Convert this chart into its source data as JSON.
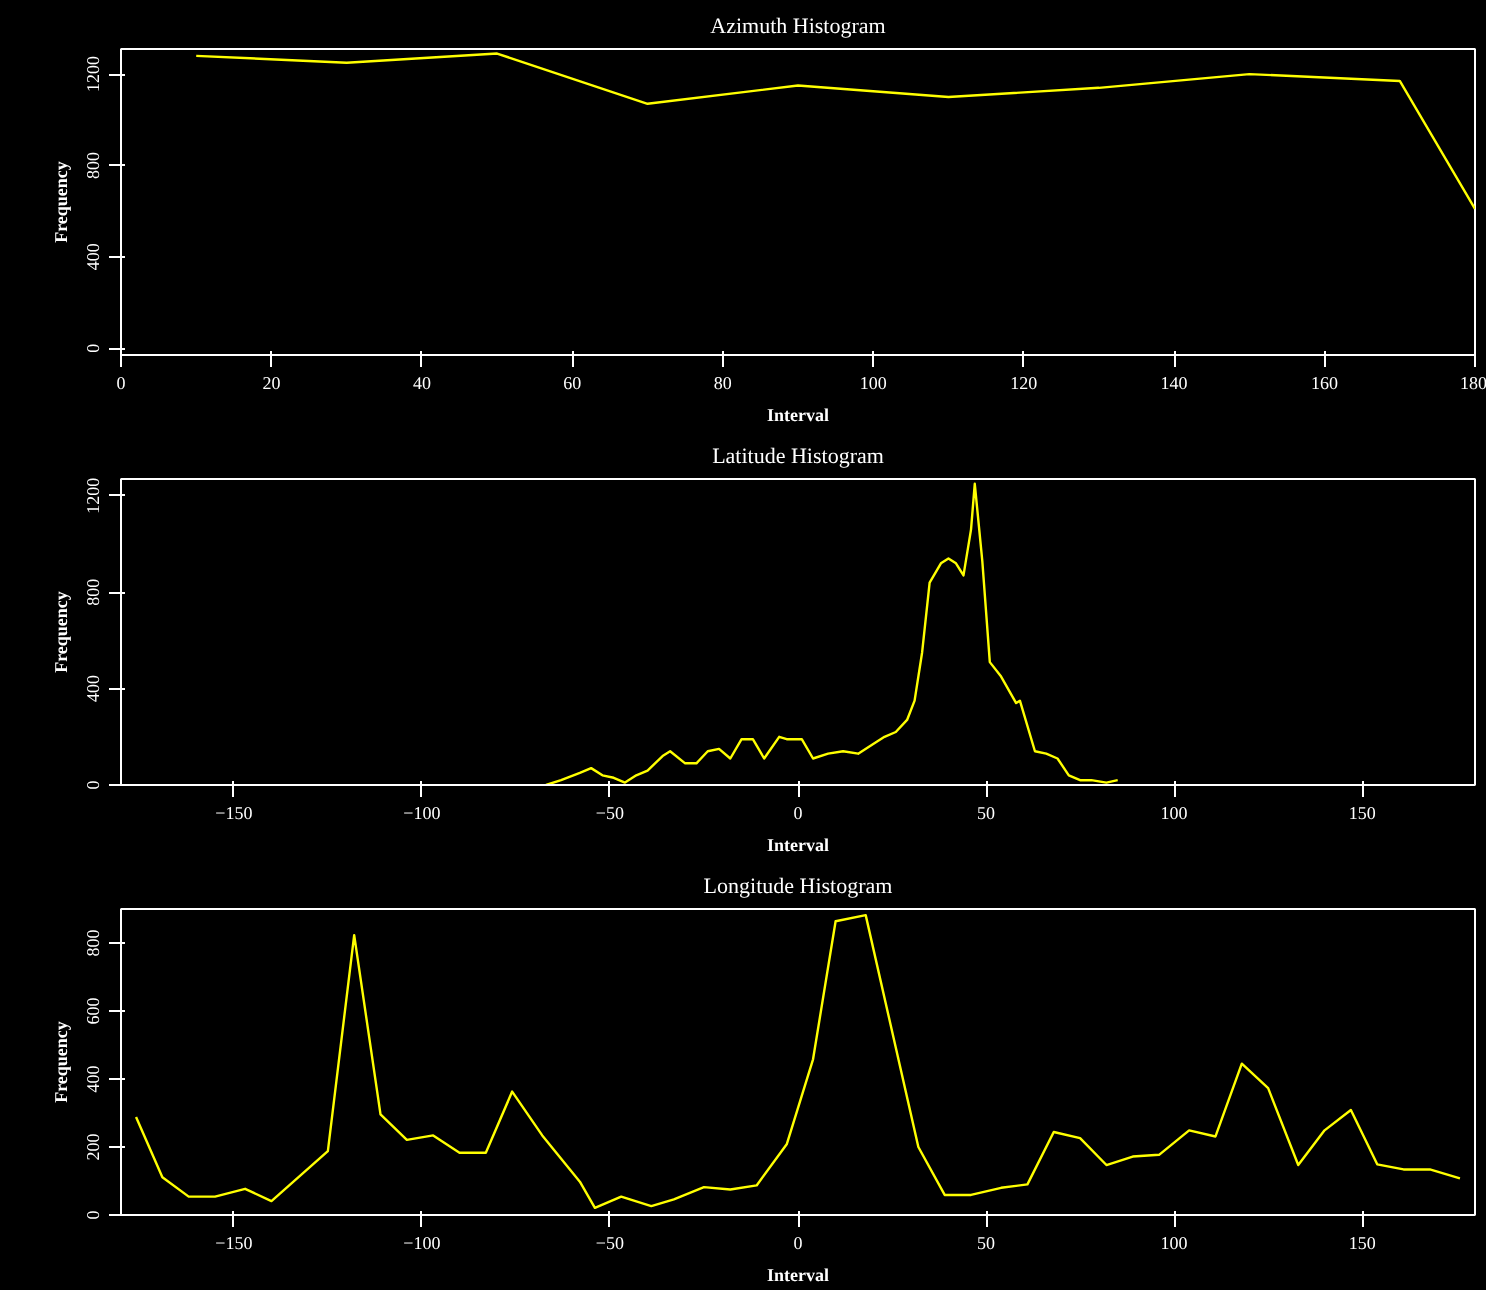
{
  "chart_data": [
    {
      "type": "line",
      "title": "Azimuth Histogram",
      "xlabel": "Interval",
      "ylabel": "Frequency",
      "xlim": [
        0,
        180
      ],
      "ylim": [
        -30,
        1310
      ],
      "xticks": [
        0,
        20,
        40,
        60,
        80,
        100,
        120,
        140,
        160,
        180
      ],
      "yticks": [
        0,
        400,
        800,
        1200
      ],
      "grid": false,
      "marker": "none",
      "line_style": "solid",
      "series": [
        {
          "color": "#ffff00",
          "x": [
            10,
            30,
            50,
            70,
            90,
            110,
            130,
            150,
            170,
            180
          ],
          "values": [
            1280,
            1250,
            1290,
            1070,
            1150,
            1100,
            1140,
            1200,
            1170,
            610
          ]
        }
      ]
    },
    {
      "type": "line",
      "title": "Latitude Histogram",
      "xlabel": "Interval",
      "ylabel": "Frequency",
      "xlim": [
        -180,
        180
      ],
      "ylim": [
        0,
        1270
      ],
      "xticks": [
        -150,
        -100,
        -50,
        0,
        50,
        100,
        150
      ],
      "yticks": [
        0,
        400,
        800,
        1200
      ],
      "grid": false,
      "marker": "none",
      "line_style": "solid",
      "series": [
        {
          "color": "#ffff00",
          "x": [
            -67,
            -63,
            -58,
            -55,
            -52,
            -49,
            -46,
            -43,
            -40,
            -36,
            -34,
            -30,
            -27,
            -24,
            -21,
            -18,
            -15,
            -12,
            -9,
            -5,
            -3,
            1,
            4,
            8,
            12,
            16,
            20,
            23,
            26,
            29,
            31,
            33,
            35,
            38,
            40,
            42,
            44,
            46,
            47,
            49,
            51,
            54,
            58,
            59,
            63,
            66,
            69,
            72,
            75,
            78,
            82,
            85
          ],
          "values": [
            0,
            20,
            50,
            70,
            40,
            30,
            10,
            40,
            60,
            120,
            140,
            90,
            90,
            140,
            150,
            110,
            190,
            190,
            110,
            200,
            190,
            190,
            110,
            130,
            140,
            130,
            170,
            200,
            220,
            270,
            350,
            550,
            840,
            920,
            940,
            920,
            870,
            1060,
            1250,
            930,
            510,
            450,
            340,
            350,
            140,
            130,
            110,
            40,
            20,
            20,
            10,
            20
          ]
        }
      ]
    },
    {
      "type": "line",
      "title": "Longitude Histogram",
      "xlabel": "Interval",
      "ylabel": "Frequency",
      "xlim": [
        -180,
        180
      ],
      "ylim": [
        0,
        900
      ],
      "xticks": [
        -150,
        -100,
        -50,
        0,
        50,
        100,
        150
      ],
      "yticks": [
        0,
        200,
        400,
        600,
        800
      ],
      "grid": false,
      "marker": "none",
      "line_style": "solid",
      "series": [
        {
          "color": "#ffff00",
          "x": [
            -176,
            -169,
            -162,
            -155,
            -147,
            -140,
            -125,
            -118,
            -111,
            -104,
            -97,
            -90,
            -83,
            -76,
            -68,
            -58,
            -54,
            -47,
            -39,
            -33,
            -25,
            -18,
            -11,
            -3,
            4,
            10,
            18,
            32,
            39,
            46,
            54,
            61,
            68,
            75,
            82,
            89,
            96,
            104,
            111,
            118,
            125,
            133,
            140,
            147,
            154,
            161,
            168,
            176
          ],
          "values": [
            288,
            111,
            54,
            54,
            77,
            41,
            188,
            823,
            296,
            221,
            234,
            183,
            183,
            363,
            234,
            98,
            21,
            54,
            26,
            46,
            82,
            75,
            87,
            208,
            458,
            864,
            882,
            200,
            59,
            59,
            80,
            90,
            244,
            226,
            147,
            172,
            177,
            249,
            231,
            445,
            373,
            147,
            249,
            309,
            149,
            134,
            134,
            108
          ]
        }
      ]
    }
  ]
}
